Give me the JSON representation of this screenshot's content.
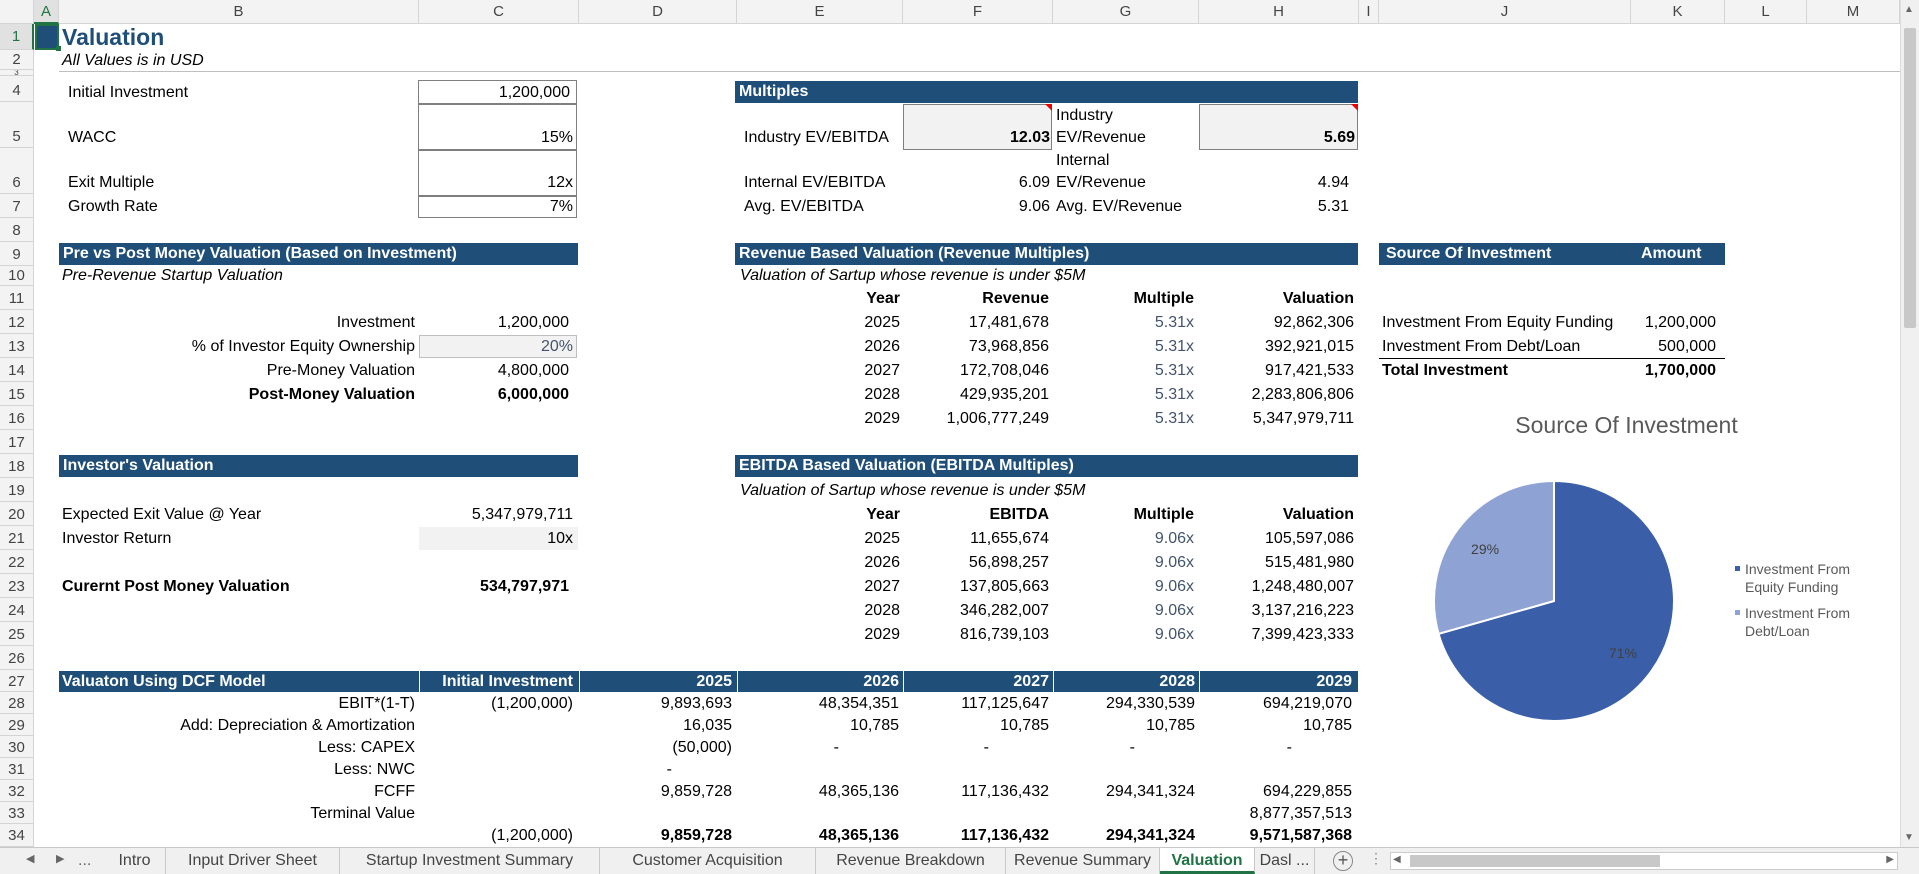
{
  "sheet": {
    "title": "Valuation",
    "subtitle": "All Values is in USD"
  },
  "columns": [
    "A",
    "B",
    "C",
    "D",
    "E",
    "F",
    "G",
    "H",
    "I",
    "J",
    "K",
    "L",
    "M"
  ],
  "rows": [
    "1",
    "2",
    "3",
    "4",
    "5",
    "6",
    "7",
    "8",
    "9",
    "10",
    "11",
    "12",
    "13",
    "14",
    "15",
    "16",
    "17",
    "18",
    "19",
    "20",
    "21",
    "22",
    "23",
    "24",
    "25",
    "26",
    "27",
    "28",
    "29",
    "30",
    "31",
    "32",
    "33",
    "34"
  ],
  "inputs": {
    "initial_investment_label": "Initial Investment",
    "initial_investment": "1,200,000",
    "wacc_label": "WACC",
    "wacc": "15%",
    "exit_multiple_label": "Exit Multiple",
    "exit_multiple": "12x",
    "growth_rate_label": "Growth Rate",
    "growth_rate": "7%"
  },
  "multiples": {
    "header": "Multiples",
    "ind_ev_ebitda_label": "Industry EV/EBITDA",
    "ind_ev_ebitda": "12.03",
    "ind_ev_rev_label1": "Industry",
    "ind_ev_rev_label2": "EV/Revenue",
    "ind_ev_rev": "5.69",
    "int_ev_ebitda_label": "Internal EV/EBITDA",
    "int_ev_ebitda": "6.09",
    "int_ev_rev_label1": "Internal",
    "int_ev_rev_label2": "EV/Revenue",
    "int_ev_rev": "4.94",
    "avg_ev_ebitda_label": "Avg. EV/EBITDA",
    "avg_ev_ebitda": "9.06",
    "avg_ev_rev_label": "Avg. EV/Revenue",
    "avg_ev_rev": "5.31"
  },
  "prepost": {
    "header": "Pre vs Post Money Valuation (Based on Investment)",
    "subtitle": "Pre-Revenue Startup Valuation",
    "investment_label": "Investment",
    "investment": "1,200,000",
    "equity_label": "% of Investor Equity Ownership",
    "equity": "20%",
    "pre_label": "Pre-Money Valuation",
    "pre": "4,800,000",
    "post_label": "Post-Money Valuation",
    "post": "6,000,000"
  },
  "investor": {
    "header": "Investor's Valuation",
    "exit_label": "Expected Exit Value @ Year",
    "exit": "5,347,979,711",
    "return_label": "Investor Return",
    "return": "10x",
    "current_label": "Curernt Post Money Valuation",
    "current": "534,797,971"
  },
  "revenue_val": {
    "header": "Revenue Based Valuation (Revenue Multiples)",
    "subtitle": "Valuation of Sartup whose revenue is under $5M",
    "cols": [
      "Year",
      "Revenue",
      "Multiple",
      "Valuation"
    ],
    "rows": [
      [
        "2025",
        "17,481,678",
        "5.31x",
        "92,862,306"
      ],
      [
        "2026",
        "73,968,856",
        "5.31x",
        "392,921,015"
      ],
      [
        "2027",
        "172,708,046",
        "5.31x",
        "917,421,533"
      ],
      [
        "2028",
        "429,935,201",
        "5.31x",
        "2,283,806,806"
      ],
      [
        "2029",
        "1,006,777,249",
        "5.31x",
        "5,347,979,711"
      ]
    ]
  },
  "ebitda_val": {
    "header": "EBITDA Based Valuation (EBITDA Multiples)",
    "subtitle": "Valuation of Sartup whose revenue is under $5M",
    "cols": [
      "Year",
      "EBITDA",
      "Multiple",
      "Valuation"
    ],
    "rows": [
      [
        "2025",
        "11,655,674",
        "9.06x",
        "105,597,086"
      ],
      [
        "2026",
        "56,898,257",
        "9.06x",
        "515,481,980"
      ],
      [
        "2027",
        "137,805,663",
        "9.06x",
        "1,248,480,007"
      ],
      [
        "2028",
        "346,282,007",
        "9.06x",
        "3,137,216,223"
      ],
      [
        "2029",
        "816,739,103",
        "9.06x",
        "7,399,423,333"
      ]
    ]
  },
  "source": {
    "header": "Source Of Investment",
    "amount_header": "Amount",
    "equity_label": "Investment From Equity Funding",
    "equity": "1,200,000",
    "debt_label": "Investment From Debt/Loan",
    "debt": "500,000",
    "total_label": "Total Investment",
    "total": "1,700,000"
  },
  "chart_data": {
    "type": "pie",
    "title": "Source Of Investment",
    "categories": [
      "Investment From Equity Funding",
      "Investment From Debt/Loan"
    ],
    "values": [
      1200000,
      500000
    ],
    "data_labels": [
      "71%",
      "29%"
    ],
    "colors": [
      "#3a5ea8",
      "#8ea2d4"
    ],
    "legend": "right"
  },
  "dcf": {
    "header": "Valuaton Using DCF Model",
    "cols": [
      "Initial Investment",
      "2025",
      "2026",
      "2027",
      "2028",
      "2029"
    ],
    "rows": [
      {
        "label": "EBIT*(1-T)",
        "vals": [
          "(1,200,000)",
          "9,893,693",
          "48,354,351",
          "117,125,647",
          "294,330,539",
          "694,219,070"
        ]
      },
      {
        "label": "Add: Depreciation & Amortization",
        "vals": [
          "",
          "16,035",
          "10,785",
          "10,785",
          "10,785",
          "10,785"
        ]
      },
      {
        "label": "Less: CAPEX",
        "vals": [
          "",
          "(50,000)",
          "-",
          "-",
          "-",
          "-"
        ]
      },
      {
        "label": "Less: NWC",
        "vals": [
          "",
          "-",
          "",
          "",
          "",
          ""
        ]
      },
      {
        "label": "FCFF",
        "vals": [
          "",
          "9,859,728",
          "48,365,136",
          "117,136,432",
          "294,341,324",
          "694,229,855"
        ]
      },
      {
        "label": "Terminal Value",
        "vals": [
          "",
          "",
          "",
          "",
          "",
          "8,877,357,513"
        ]
      },
      {
        "label": "",
        "vals": [
          "(1,200,000)",
          "9,859,728",
          "48,365,136",
          "117,136,432",
          "294,341,324",
          "9,571,587,368"
        ]
      }
    ]
  },
  "tabs": {
    "dots": "...",
    "items": [
      "Intro",
      "Input Driver Sheet",
      "Startup Investment Summary",
      "Customer Acquisition",
      "Revenue Breakdown",
      "Revenue Summary",
      "Valuation",
      "Dasl ..."
    ],
    "active": "Valuation"
  }
}
